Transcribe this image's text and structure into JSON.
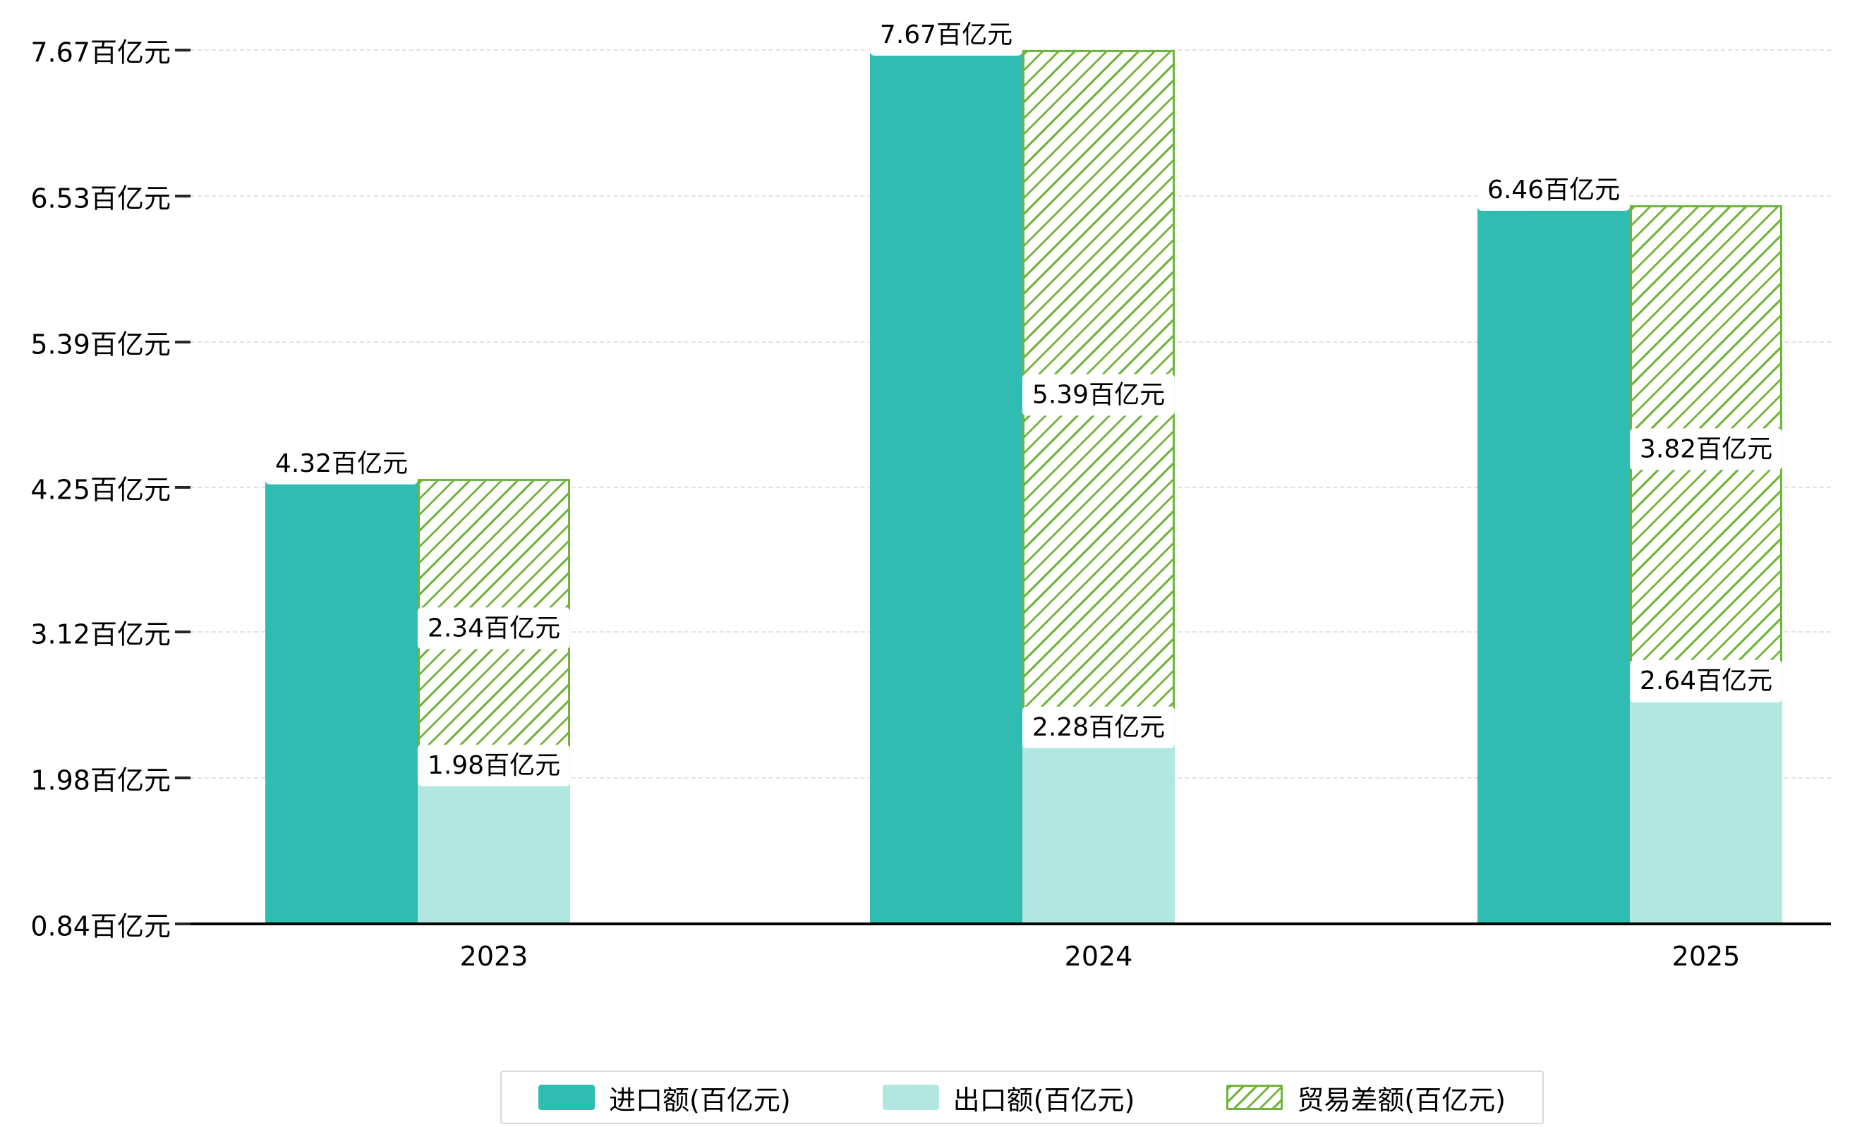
{
  "chart_data": {
    "type": "bar",
    "title": "",
    "unit": "百亿元",
    "categories": [
      "2023",
      "2024",
      "2025"
    ],
    "series": [
      {
        "name": "进口额(百亿元)",
        "style": "solid",
        "color": "#2fbdb1",
        "values": [
          4.32,
          7.67,
          6.46
        ],
        "labels": [
          "4.32百亿元",
          "7.67百亿元",
          "6.46百亿元"
        ]
      },
      {
        "name": "出口额(百亿元)",
        "style": "solid",
        "color": "#b2e7e1",
        "values": [
          1.98,
          2.28,
          2.64
        ],
        "labels": [
          "1.98百亿元",
          "2.28百亿元",
          "2.64百亿元"
        ]
      },
      {
        "name": "贸易差额(百亿元)",
        "style": "hatched",
        "color": "#6fb53c",
        "hatch_background": "#ffffff",
        "stacked_on_series": "出口额(百亿元)",
        "values": [
          2.34,
          5.39,
          3.82
        ],
        "labels": [
          "2.34百亿元",
          "5.39百亿元",
          "3.82百亿元"
        ]
      }
    ],
    "y_axis": {
      "min": 0.84,
      "max": 7.67,
      "tick_values": [
        0.84,
        1.98,
        3.12,
        4.25,
        5.39,
        6.53,
        7.67
      ],
      "tick_labels": [
        "0.84百亿元",
        "1.98百亿元",
        "3.12百亿元",
        "4.25百亿元",
        "5.39百亿元",
        "6.53百亿元",
        "7.67百亿元"
      ]
    },
    "x_axis": {
      "tick_labels": [
        "2023",
        "2024",
        "2025"
      ]
    },
    "legend": {
      "position": "bottom",
      "items": [
        "进口额(百亿元)",
        "出口额(百亿元)",
        "贸易差额(百亿元)"
      ]
    },
    "grid": {
      "horizontal": true,
      "style": "dashed"
    },
    "colors": {
      "import_bar": "#2fbdb1",
      "export_bar": "#b2e7e1",
      "trade_gap_hatch": "#6fb53c",
      "axis_line": "#000000",
      "gridline": "#e2e2e2",
      "background": "#ffffff",
      "label_text": "#000000"
    }
  }
}
